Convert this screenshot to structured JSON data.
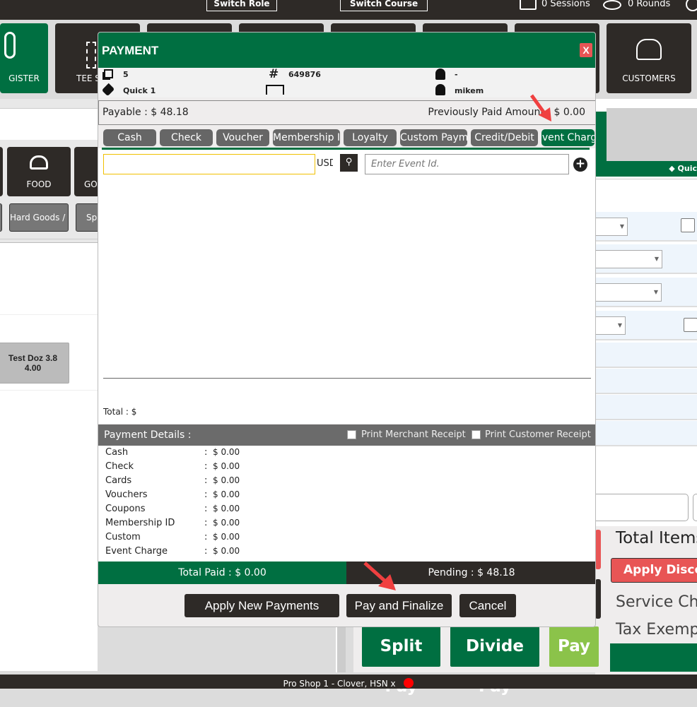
{
  "topbar": {
    "switch_role": "Switch Role",
    "switch_course": "Switch Course",
    "sessions": "0 Sessions",
    "rounds": "0 Rounds"
  },
  "tiles": {
    "register": "GISTER",
    "tee_sheet": "TEE S",
    "customers": "CUSTOMERS"
  },
  "categories": {
    "food": "FOOD",
    "golf": "GO",
    "hard_goods": "Hard Goods / (",
    "spe": "Spe"
  },
  "product": {
    "name": "Test Doz 3.8",
    "price": "4.00"
  },
  "right": {
    "quick": "Quic",
    "total_items": "Total Items",
    "apply_discount": "Apply Discou",
    "service_charge": "Service Cha",
    "tax_exempt": "Tax Exemp"
  },
  "bottom_buttons": {
    "split_pay": "Split Pay",
    "divide_pay": "Divide Pay",
    "pay": "Pay"
  },
  "modal": {
    "title": "PAYMENT",
    "close": "X",
    "info": {
      "count": "5",
      "ticket_no": "649876",
      "customer": "-",
      "tag": "Quick 1",
      "table": "",
      "user": "mikem"
    },
    "payable": "Payable : $ 48.18",
    "previously_paid": "Previously Paid Amount : $ 0.00",
    "tabs": [
      {
        "label": "Cash"
      },
      {
        "label": "Check"
      },
      {
        "label": "Voucher"
      },
      {
        "label": "Membership ID"
      },
      {
        "label": "Loyalty"
      },
      {
        "label": "Custom Payment"
      },
      {
        "label": "Credit/Debit"
      },
      {
        "label": "Event Charge",
        "active": true
      }
    ],
    "amount_value": "",
    "currency": "USD",
    "event_placeholder": "Enter Event Id.",
    "total": "Total : $",
    "payment_details": "Payment Details :",
    "print_merchant": "Print Merchant Receipt",
    "print_customer": "Print Customer Receipt",
    "details": [
      {
        "label": "Cash",
        "value": "$ 0.00"
      },
      {
        "label": "Check",
        "value": "$ 0.00"
      },
      {
        "label": "Cards",
        "value": "$ 0.00"
      },
      {
        "label": "Vouchers",
        "value": "$ 0.00"
      },
      {
        "label": "Coupons",
        "value": "$ 0.00"
      },
      {
        "label": "Membership ID",
        "value": "$ 0.00"
      },
      {
        "label": "Custom",
        "value": "$ 0.00"
      },
      {
        "label": "Event Charge",
        "value": "$ 0.00"
      }
    ],
    "total_paid": "Total Paid : $ 0.00",
    "pending": "Pending : $ 48.18",
    "apply_new": "Apply New Payments",
    "pay_finalize": "Pay and Finalize",
    "cancel": "Cancel"
  },
  "status": "Pro Shop 1 - Clover, HSN x",
  "colors": {
    "green": "#006f41",
    "dark": "#2e2a27",
    "light_green": "#8bc34a",
    "red": "#e85555",
    "status_dot": "#ff0000"
  }
}
